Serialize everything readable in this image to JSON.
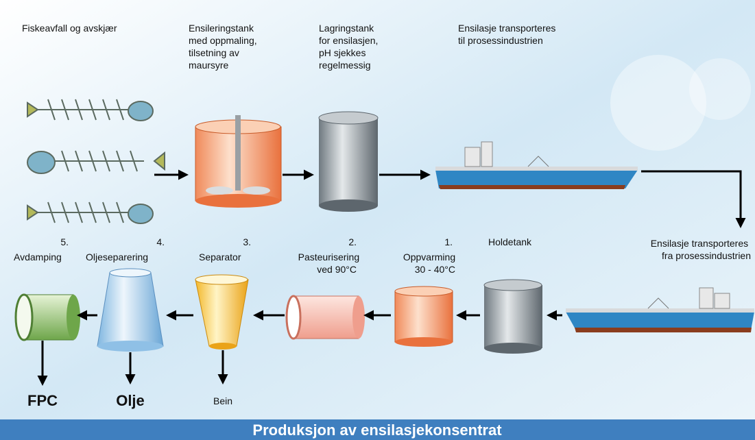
{
  "top_steps": [
    {
      "lines": [
        "Fiskeavfall og avskjær"
      ]
    },
    {
      "lines": [
        "Ensileringstank",
        "med oppmaling,",
        "tilsetning av",
        "maursyre"
      ]
    },
    {
      "lines": [
        "Lagringstank",
        "for ensilasjen,",
        "pH sjekkes",
        "regelmessig"
      ]
    },
    {
      "lines": [
        "Ensilasje transporteres",
        "til prosessindustrien"
      ]
    }
  ],
  "bottom_steps": [
    {
      "number": "5.",
      "lines": [
        "Avdamping"
      ]
    },
    {
      "number": "4.",
      "lines": [
        "Oljeseparering"
      ]
    },
    {
      "number": "3.",
      "lines": [
        "Separator"
      ]
    },
    {
      "number": "2.",
      "lines": [
        "Pasteurisering",
        "ved 90°C"
      ]
    },
    {
      "number": "1.",
      "lines": [
        "Oppvarming",
        "30 - 40°C"
      ]
    },
    {
      "lines": [
        "Holdetank"
      ]
    },
    {
      "lines": [
        "Ensilasje transporteres",
        "fra prosessindustrien"
      ]
    }
  ],
  "outputs": [
    "FPC",
    "Olje",
    "Bein"
  ],
  "footer": {
    "title": "Produksjon av ensilasjekonsentrat"
  }
}
